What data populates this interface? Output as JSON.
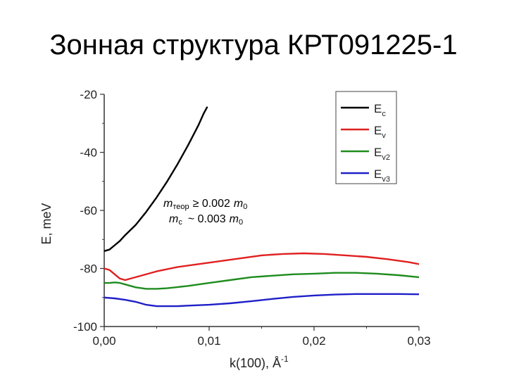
{
  "slide": {
    "title": "Зонная структура КРТ091225-1"
  },
  "chart_data": {
    "type": "line",
    "xlabel": "k(100), Å",
    "xlabel_sup": "-1",
    "ylabel": "E, meV",
    "xlim": [
      0,
      0.03
    ],
    "ylim": [
      -100,
      -20
    ],
    "xticks": [
      "0,00",
      "0,01",
      "0,02",
      "0,03"
    ],
    "xtick_values": [
      0,
      0.01,
      0.02,
      0.03
    ],
    "yticks": [
      "-20",
      "-40",
      "-60",
      "-80",
      "-100"
    ],
    "ytick_values": [
      -20,
      -40,
      -60,
      -80,
      -100
    ],
    "grid": false,
    "legend_position": "top-right",
    "series": [
      {
        "name": "E",
        "sub": "c",
        "color": "#000000",
        "x": [
          0,
          0.0005,
          0.001,
          0.0015,
          0.002,
          0.003,
          0.004,
          0.005,
          0.006,
          0.007,
          0.008,
          0.009,
          0.0095,
          0.0098
        ],
        "y": [
          -74,
          -73.5,
          -72,
          -70.5,
          -68.5,
          -65,
          -60.5,
          -55.5,
          -50,
          -44,
          -37.5,
          -30.5,
          -26.5,
          -24.5
        ]
      },
      {
        "name": "E",
        "sub": "v",
        "color": "#e02020",
        "x": [
          0,
          0.0005,
          0.001,
          0.0015,
          0.002,
          0.0025,
          0.003,
          0.005,
          0.007,
          0.009,
          0.011,
          0.013,
          0.015,
          0.017,
          0.019,
          0.021,
          0.023,
          0.025,
          0.027,
          0.029,
          0.03
        ],
        "y": [
          -80,
          -80.5,
          -82,
          -83.5,
          -84,
          -83.5,
          -83,
          -81,
          -79.5,
          -78.5,
          -77.5,
          -76.5,
          -75.5,
          -75,
          -74.8,
          -75,
          -75.5,
          -76,
          -76.8,
          -77.8,
          -78.5
        ]
      },
      {
        "name": "E",
        "sub": "v2",
        "color": "#1e8c1e",
        "x": [
          0,
          0.0005,
          0.001,
          0.0015,
          0.002,
          0.003,
          0.004,
          0.005,
          0.006,
          0.008,
          0.01,
          0.012,
          0.014,
          0.016,
          0.018,
          0.02,
          0.022,
          0.024,
          0.026,
          0.028,
          0.03
        ],
        "y": [
          -85,
          -85,
          -84.8,
          -85,
          -85.5,
          -86.5,
          -87,
          -87,
          -86.8,
          -86,
          -85,
          -84,
          -83,
          -82.5,
          -82,
          -81.8,
          -81.5,
          -81.5,
          -81.8,
          -82.3,
          -83
        ]
      },
      {
        "name": "E",
        "sub": "v3",
        "color": "#1f1fc8",
        "x": [
          0,
          0.001,
          0.002,
          0.003,
          0.004,
          0.005,
          0.006,
          0.007,
          0.008,
          0.01,
          0.012,
          0.014,
          0.016,
          0.018,
          0.02,
          0.022,
          0.024,
          0.026,
          0.028,
          0.03
        ],
        "y": [
          -90,
          -90.3,
          -90.8,
          -91.5,
          -92.5,
          -93,
          -93,
          -93,
          -92.8,
          -92.5,
          -92,
          -91.3,
          -90.5,
          -89.8,
          -89.3,
          -89,
          -88.8,
          -88.8,
          -88.8,
          -88.9
        ]
      }
    ],
    "annotations": {
      "line1": {
        "m": "m",
        "sub": "теор",
        "rel": "≥ 0.002",
        "m0": "m",
        "m0_sub": "0"
      },
      "line2": {
        "m": "m",
        "sub": "c",
        "rel": "~ 0.003",
        "m0": "m",
        "m0_sub": "0"
      }
    }
  }
}
